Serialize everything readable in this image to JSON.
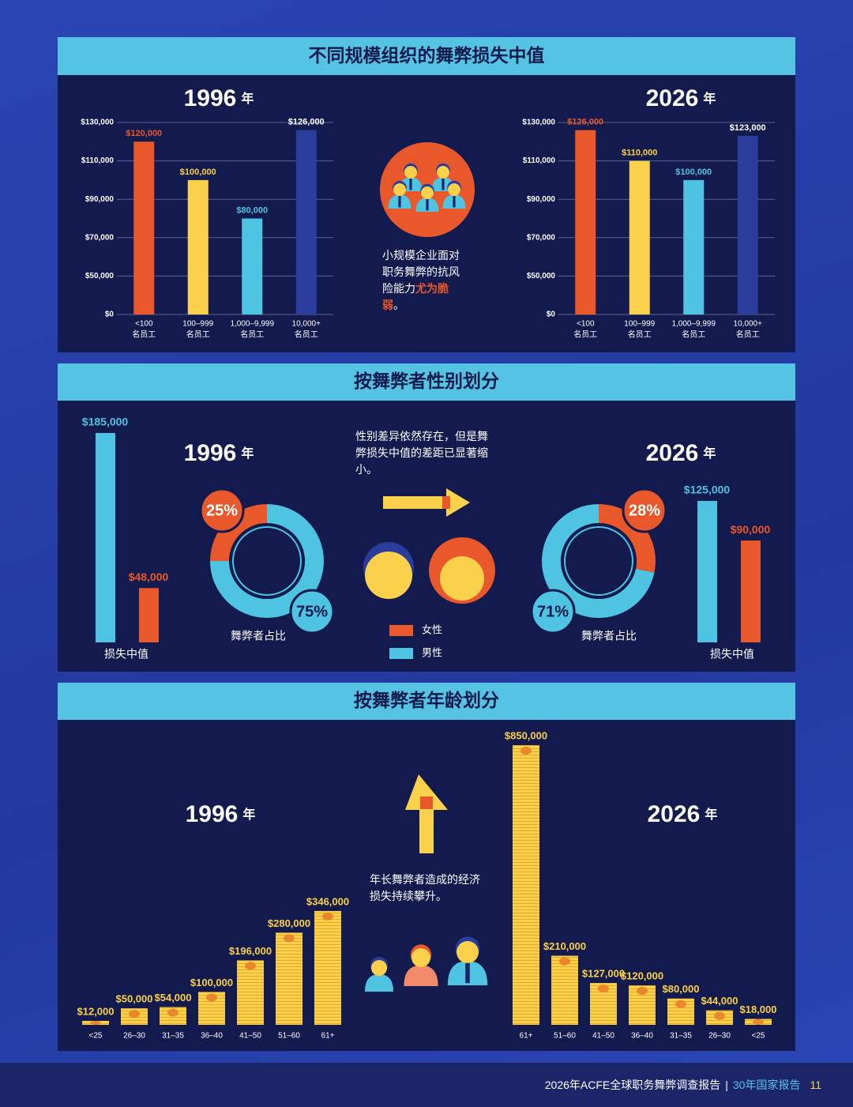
{
  "sections": [
    {
      "title": "不同规模组织的舞弊损失中值"
    },
    {
      "title": "按舞弊者性别划分"
    },
    {
      "title": "按舞弊者年龄划分"
    }
  ],
  "size_note": [
    "小规模企业面对职务舞弊的抗风险能力",
    "尤为脆弱",
    "。"
  ],
  "gender_note": "性别差异依然存在，但是舞弊损失中值的差距已显著缩小。",
  "age_note": "年长舞弊者造成的经济损失持续攀升。",
  "gender_legend": [
    {
      "name": "女性",
      "color": "#e8582a"
    },
    {
      "name": "男性",
      "color": "#4fc3e2"
    }
  ],
  "footer": {
    "report": "2026年ACFE全球职务舞弊调查报告",
    "separator": "|",
    "series": "30年国家报告",
    "page": "11"
  },
  "chart_data": [
    {
      "type": "bar",
      "title": "1996",
      "title_unit": "年",
      "categories": [
        "<100",
        "100–999",
        "1,000–9,999",
        "10,000+"
      ],
      "category_unit": "名员工",
      "values": [
        120000,
        100000,
        80000,
        126000
      ],
      "value_labels": [
        "$120,000",
        "$100,000",
        "$80,000",
        "$126,000"
      ],
      "colors": [
        "#e8582a",
        "#fbd14b",
        "#4fc3e2",
        "#2a3d9c"
      ],
      "label_colors": [
        "#e8582a",
        "#fbd14b",
        "#4fc3e2",
        "#ffffff"
      ],
      "ylim": [
        0,
        130000
      ],
      "yticks": [
        {
          "value": 0,
          "label": "$0"
        },
        {
          "value": 50000,
          "label": "$50,000"
        },
        {
          "value": 70000,
          "label": "$70,000"
        },
        {
          "value": 90000,
          "label": "$90,000"
        },
        {
          "value": 110000,
          "label": "$110,000"
        },
        {
          "value": 130000,
          "label": "$130,000"
        }
      ],
      "grid": true
    },
    {
      "type": "bar",
      "title": "2026",
      "title_unit": "年",
      "categories": [
        "<100",
        "100–999",
        "1,000–9,999",
        "10,000+"
      ],
      "category_unit": "名员工",
      "values": [
        126000,
        110000,
        100000,
        123000
      ],
      "value_labels": [
        "$126,000",
        "$110,000",
        "$100,000",
        "$123,000"
      ],
      "colors": [
        "#e8582a",
        "#fbd14b",
        "#4fc3e2",
        "#2a3d9c"
      ],
      "label_colors": [
        "#e8582a",
        "#fbd14b",
        "#4fc3e2",
        "#ffffff"
      ],
      "ylim": [
        0,
        130000
      ],
      "yticks": [
        {
          "value": 0,
          "label": "$0"
        },
        {
          "value": 50000,
          "label": "$50,000"
        },
        {
          "value": 70000,
          "label": "$70,000"
        },
        {
          "value": 90000,
          "label": "$90,000"
        },
        {
          "value": 110000,
          "label": "$110,000"
        },
        {
          "value": 130000,
          "label": "$130,000"
        }
      ],
      "grid": true
    },
    {
      "type": "bar",
      "x_label": "损失中值",
      "values": [
        185000,
        48000
      ],
      "value_labels": [
        "$185,000",
        "$48,000"
      ],
      "colors": [
        "#4fc3e2",
        "#e8582a"
      ]
    },
    {
      "type": "pie",
      "title": "1996",
      "title_unit": "年",
      "caption": "舞弊者占比",
      "values": [
        25,
        75
      ],
      "value_labels": [
        "25%",
        "75%"
      ],
      "colors": [
        "#e8582a",
        "#4fc3e2"
      ],
      "direction": "counterclockwise"
    },
    {
      "type": "pie",
      "title": "2026",
      "title_unit": "年",
      "caption": "舞弊者占比",
      "values": [
        28,
        71
      ],
      "value_labels": [
        "28%",
        "71%"
      ],
      "colors": [
        "#e8582a",
        "#4fc3e2"
      ],
      "direction": "clockwise"
    },
    {
      "type": "bar",
      "x_label": "损失中值",
      "values": [
        125000,
        90000
      ],
      "value_labels": [
        "$125,000",
        "$90,000"
      ],
      "colors": [
        "#4fc3e2",
        "#e8582a"
      ]
    },
    {
      "type": "bar",
      "title": "1996",
      "title_unit": "年",
      "categories": [
        "<25",
        "26–30",
        "31–35",
        "36–40",
        "41–50",
        "51–60",
        "61+"
      ],
      "values": [
        12000,
        50000,
        54000,
        100000,
        196000,
        280000,
        346000
      ],
      "value_labels": [
        "$12,000",
        "$50,000",
        "$54,000",
        "$100,000",
        "$196,000",
        "$280,000",
        "$346,000"
      ],
      "color": "#fbd14b"
    },
    {
      "type": "bar",
      "title": "2026",
      "title_unit": "年",
      "categories": [
        "61+",
        "51–60",
        "41–50",
        "36–40",
        "31–35",
        "26–30",
        "<25"
      ],
      "values": [
        850000,
        210000,
        127000,
        120000,
        80000,
        44000,
        18000
      ],
      "value_labels": [
        "$850,000",
        "$210,000",
        "$127,000",
        "$120,000",
        "$80,000",
        "$44,000",
        "$18,000"
      ],
      "color": "#fbd14b"
    }
  ]
}
